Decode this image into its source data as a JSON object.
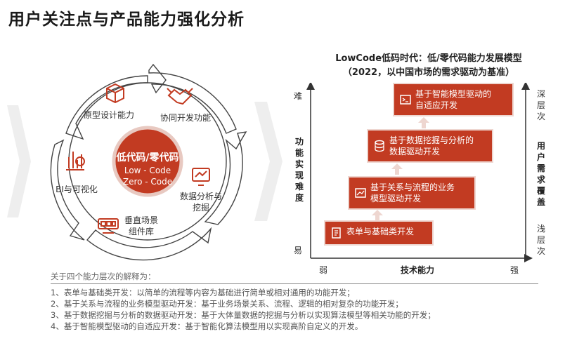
{
  "title": "用户关注点与产品能力强化分析",
  "cycle": {
    "center": {
      "title": "低代码/零代码",
      "line1": "Low - Code",
      "line2": "Zero - Code"
    },
    "items": [
      {
        "label": "原型设计能力",
        "icon": "cube-icon"
      },
      {
        "label": "协同开发功能",
        "icon": "handshake-icon"
      },
      {
        "label": "BI与可视化",
        "icon": "bar-chart-icon"
      },
      {
        "label": "数据分析与挖掘",
        "line1": "数据分析与",
        "line2": "挖掘",
        "icon": "data-analysis-icon"
      },
      {
        "label": "垂直场景组件库",
        "line1": "垂直场景",
        "line2": "组件库",
        "icon": "component-library-icon"
      }
    ]
  },
  "chart": {
    "title_line1": "LowCode低码时代：低/零代码能力发展模型",
    "title_line2": "（2022，以中国市场的需求驱动为基准）",
    "y_axis": {
      "label": "功能实现难度",
      "top": "难",
      "bottom": "易"
    },
    "x_axis": {
      "label": "技术能力",
      "left": "弱",
      "right": "强"
    },
    "right_axis": {
      "label": "用户需求覆盖",
      "top": "深层次",
      "bottom": "浅层次"
    },
    "levels": [
      {
        "line1": "表单与基础类开发",
        "line2": "",
        "icon": "form-icon"
      },
      {
        "line1": "基于关系与流程的业务",
        "line2": "模型驱动开发",
        "icon": "line-chart-icon"
      },
      {
        "line1": "基于数据挖掘与分析的",
        "line2": "数据驱动开发",
        "icon": "database-icon"
      },
      {
        "line1": "基于智能模型驱动的",
        "line2": "自适应开发",
        "icon": "terminal-icon"
      }
    ]
  },
  "notes": {
    "heading": "关于四个能力层次的解释为：",
    "items": [
      "1、表单与基础类开发：以简单的流程等内容为基础进行简单或相对通用的功能开发；",
      "2、基于关系与流程的业务模型驱动开发：基于业务场景关系、流程、逻辑的相对复杂的功能开发；",
      "3、基于数据挖掘与分析的数据驱动开发：基于大体量数据的挖掘与分析以实现算法模型等相关功能的开发；",
      "4、基于智能模型驱动的自适应开发：基于智能化算法模型用以实现高阶自定义的开发。"
    ]
  },
  "colors": {
    "accent": "#c23b22",
    "accent_light": "#eed6d0",
    "grey_chevron": "#eeeeee"
  }
}
